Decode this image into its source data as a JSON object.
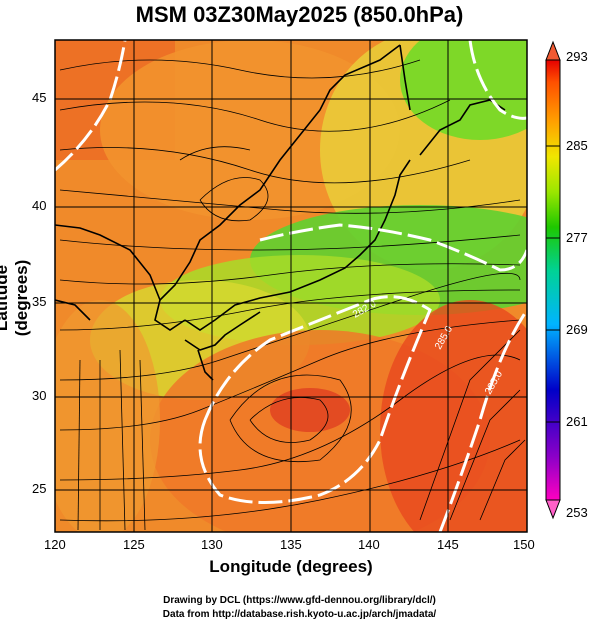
{
  "title": "MSM 03Z30May2025 (850.0hPa)",
  "axes": {
    "xlabel": "Longitude (degrees)",
    "ylabel": "Latitude  (degrees)",
    "xticks": [
      "120",
      "125",
      "130",
      "135",
      "140",
      "145",
      "150"
    ],
    "yticks": [
      "25",
      "30",
      "35",
      "40",
      "45"
    ]
  },
  "colorbar": {
    "ticks": [
      "293",
      "285",
      "277",
      "269",
      "261",
      "253"
    ],
    "colors": [
      "#ff00c0",
      "#8a00c8",
      "#0000c8",
      "#0050ff",
      "#00c8ff",
      "#00d2a0",
      "#00c800",
      "#6ee600",
      "#d2f000",
      "#ffdc00",
      "#ffa000",
      "#ff5a00",
      "#e60000"
    ]
  },
  "contour_labels": [
    "282.0",
    "285.0",
    "285.0"
  ],
  "credits": {
    "line1": "Drawing by DCL (https://www.gfd-dennou.org/library/dcl/)",
    "line2": "Data from http://database.rish.kyoto-u.ac.jp/arch/jmadata/"
  },
  "map_data": {
    "lon_range": [
      120,
      150
    ],
    "lat_range": [
      22.5,
      48
    ],
    "grid_lon": [
      120,
      125,
      130,
      135,
      140,
      145,
      150
    ],
    "grid_lat": [
      25,
      30,
      35,
      40,
      45
    ],
    "field": "temperature (K) with wind streamlines"
  }
}
